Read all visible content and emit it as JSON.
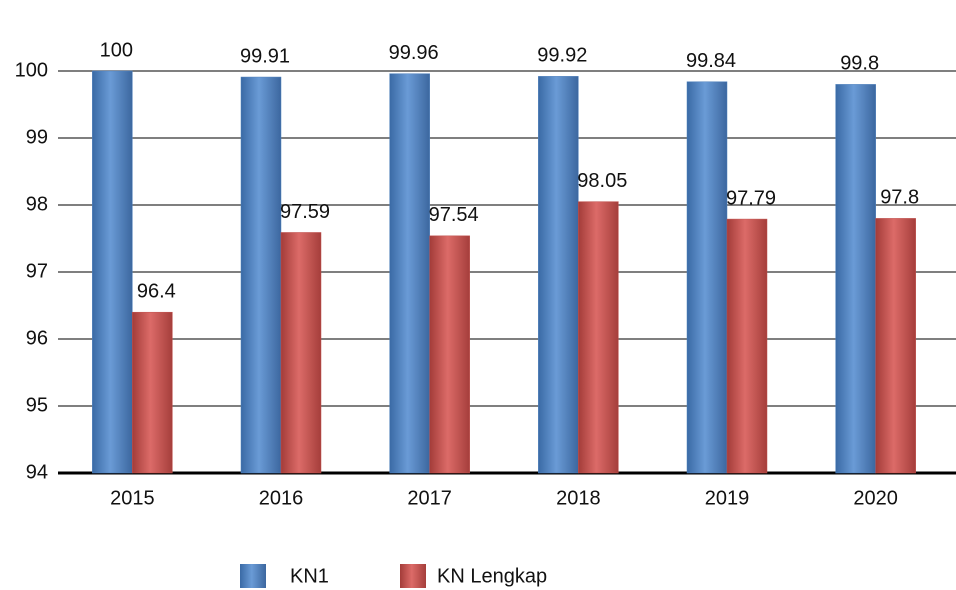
{
  "chart_data": {
    "type": "bar",
    "categories": [
      "2015",
      "2016",
      "2017",
      "2018",
      "2019",
      "2020"
    ],
    "series": [
      {
        "name": "KN1",
        "color": "#4f81bd",
        "values": [
          100,
          99.91,
          99.96,
          99.92,
          99.84,
          99.8
        ]
      },
      {
        "name": "KN Lengkap",
        "color": "#c0504d",
        "values": [
          96.4,
          97.59,
          97.54,
          98.05,
          97.79,
          97.8
        ]
      }
    ],
    "ylim": [
      94,
      100
    ],
    "yticks": [
      94,
      95,
      96,
      97,
      98,
      99,
      100
    ],
    "grid": true,
    "legend": "bottom"
  }
}
